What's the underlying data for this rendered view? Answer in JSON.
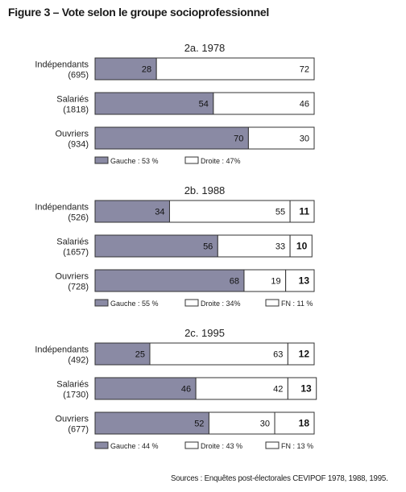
{
  "figure_title": "Figure 3 – Vote selon le groupe socioprofessionnel",
  "source": "Sources : Enquêtes post-électorales CEVIPOF 1978, 1988, 1995.",
  "colors": {
    "gauche": "#8a8aa4",
    "droite": "#ffffff",
    "fn": "#ffffff",
    "border": "#333333"
  },
  "chart_data": [
    {
      "type": "bar",
      "orientation": "horizontal",
      "stacked": true,
      "title": "2a. 1978",
      "categories": [
        "Indépendants",
        "Salariés",
        "Ouvriers"
      ],
      "category_counts": [
        "(695)",
        "(1818)",
        "(934)"
      ],
      "xlim": [
        0,
        100
      ],
      "series": [
        {
          "name": "Gauche : 53 %",
          "values": [
            28,
            54,
            70
          ]
        },
        {
          "name": "Droite : 47%",
          "values": [
            72,
            46,
            30
          ]
        }
      ]
    },
    {
      "type": "bar",
      "orientation": "horizontal",
      "stacked": true,
      "title": "2b. 1988",
      "categories": [
        "Indépendants",
        "Salariés",
        "Ouvriers"
      ],
      "category_counts": [
        "(526)",
        "(1657)",
        "(728)"
      ],
      "xlim": [
        0,
        100
      ],
      "series": [
        {
          "name": "Gauche : 55 %",
          "values": [
            34,
            56,
            68
          ]
        },
        {
          "name": "Droite : 34%",
          "values": [
            55,
            33,
            19
          ]
        },
        {
          "name": "FN : 11 %",
          "values": [
            11,
            10,
            13
          ]
        }
      ]
    },
    {
      "type": "bar",
      "orientation": "horizontal",
      "stacked": true,
      "title": "2c. 1995",
      "categories": [
        "Indépendants",
        "Salariés",
        "Ouvriers"
      ],
      "category_counts": [
        "(492)",
        "(1730)",
        "(677)"
      ],
      "xlim": [
        0,
        100
      ],
      "series": [
        {
          "name": "Gauche : 44 %",
          "values": [
            25,
            46,
            52
          ]
        },
        {
          "name": "Droite : 43 %",
          "values": [
            63,
            42,
            30
          ]
        },
        {
          "name": "FN : 13 %",
          "values": [
            12,
            13,
            18
          ]
        }
      ]
    }
  ]
}
